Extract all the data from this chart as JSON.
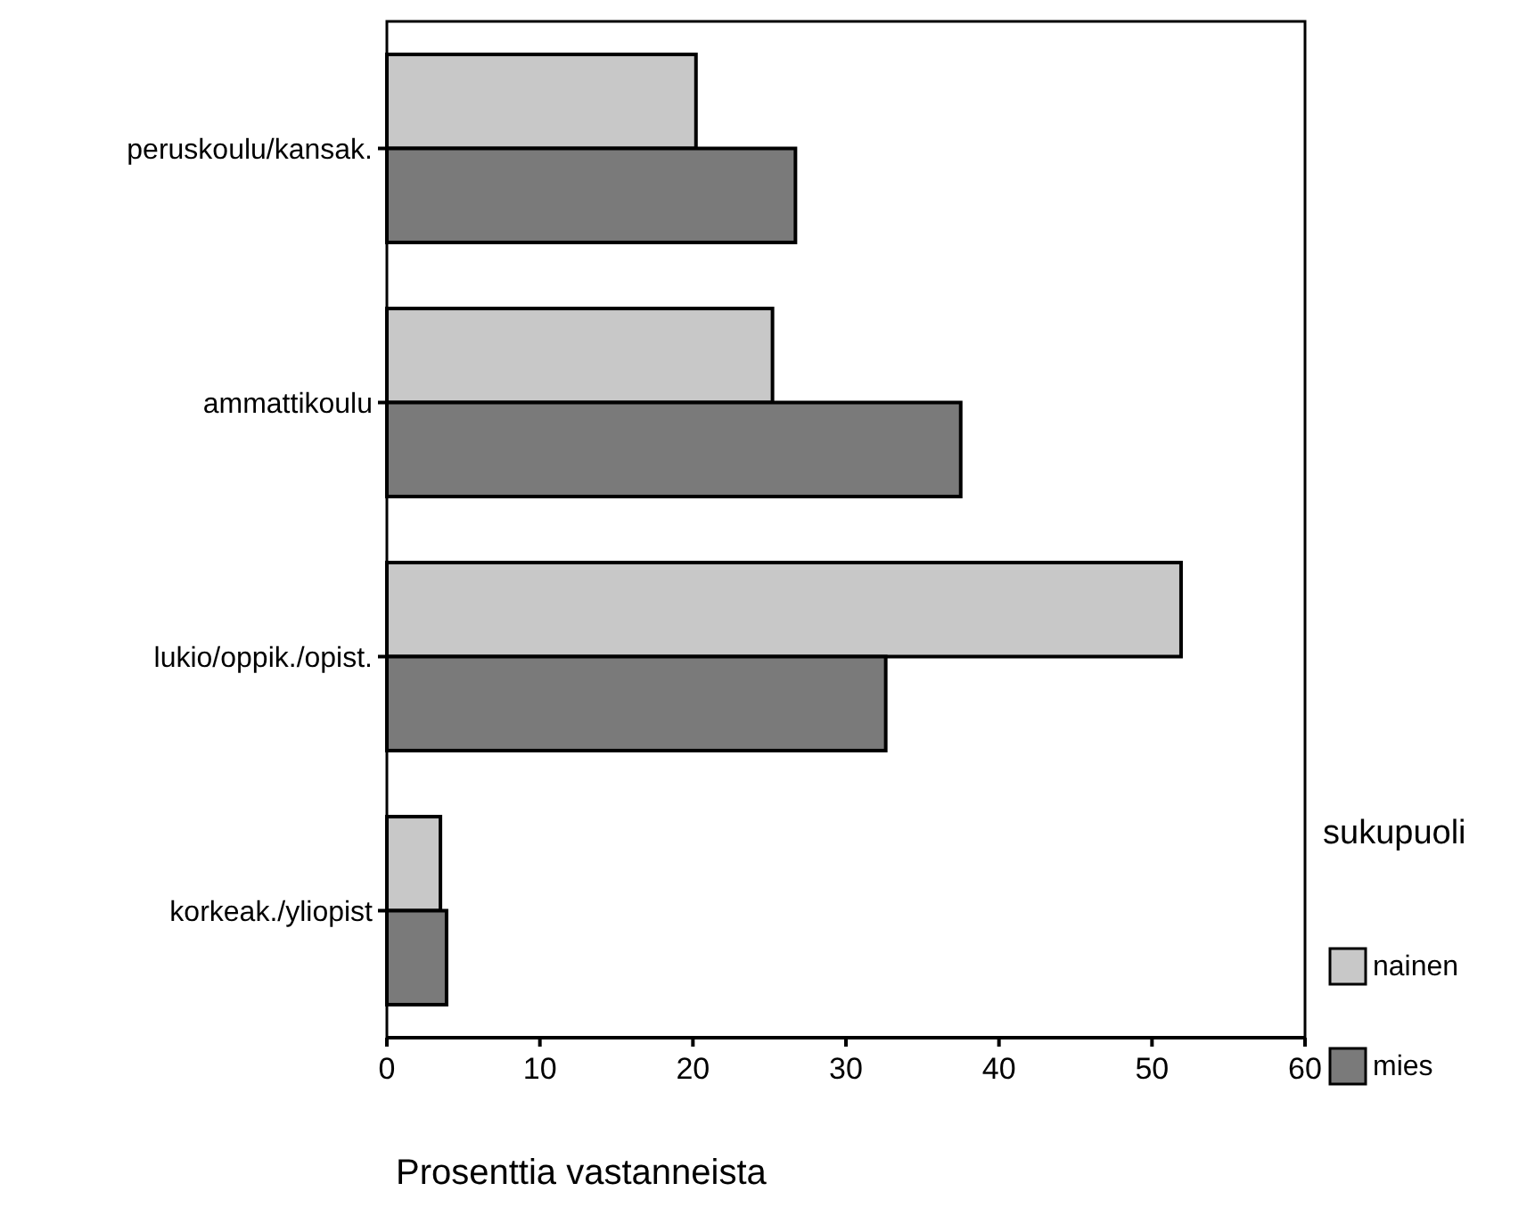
{
  "chart_data": {
    "type": "bar",
    "orientation": "horizontal",
    "xlabel": "Prosenttia vastanneista",
    "legend_title": "sukupuoli",
    "legend": "right",
    "categories": [
      "peruskoulu/kansak.",
      "ammattikoulu",
      "lukio/oppik./opist.",
      "korkeak./yliopist"
    ],
    "series": [
      {
        "name": "nainen",
        "color": "#c8c8c8",
        "values": [
          20.2,
          25.2,
          51.9,
          3.5
        ]
      },
      {
        "name": "mies",
        "color": "#7a7a7a",
        "values": [
          26.7,
          37.5,
          32.6,
          3.9
        ]
      }
    ],
    "xlim": [
      0,
      60
    ],
    "xticks": [
      0,
      10,
      20,
      30,
      40,
      50,
      60
    ],
    "grid": false
  }
}
